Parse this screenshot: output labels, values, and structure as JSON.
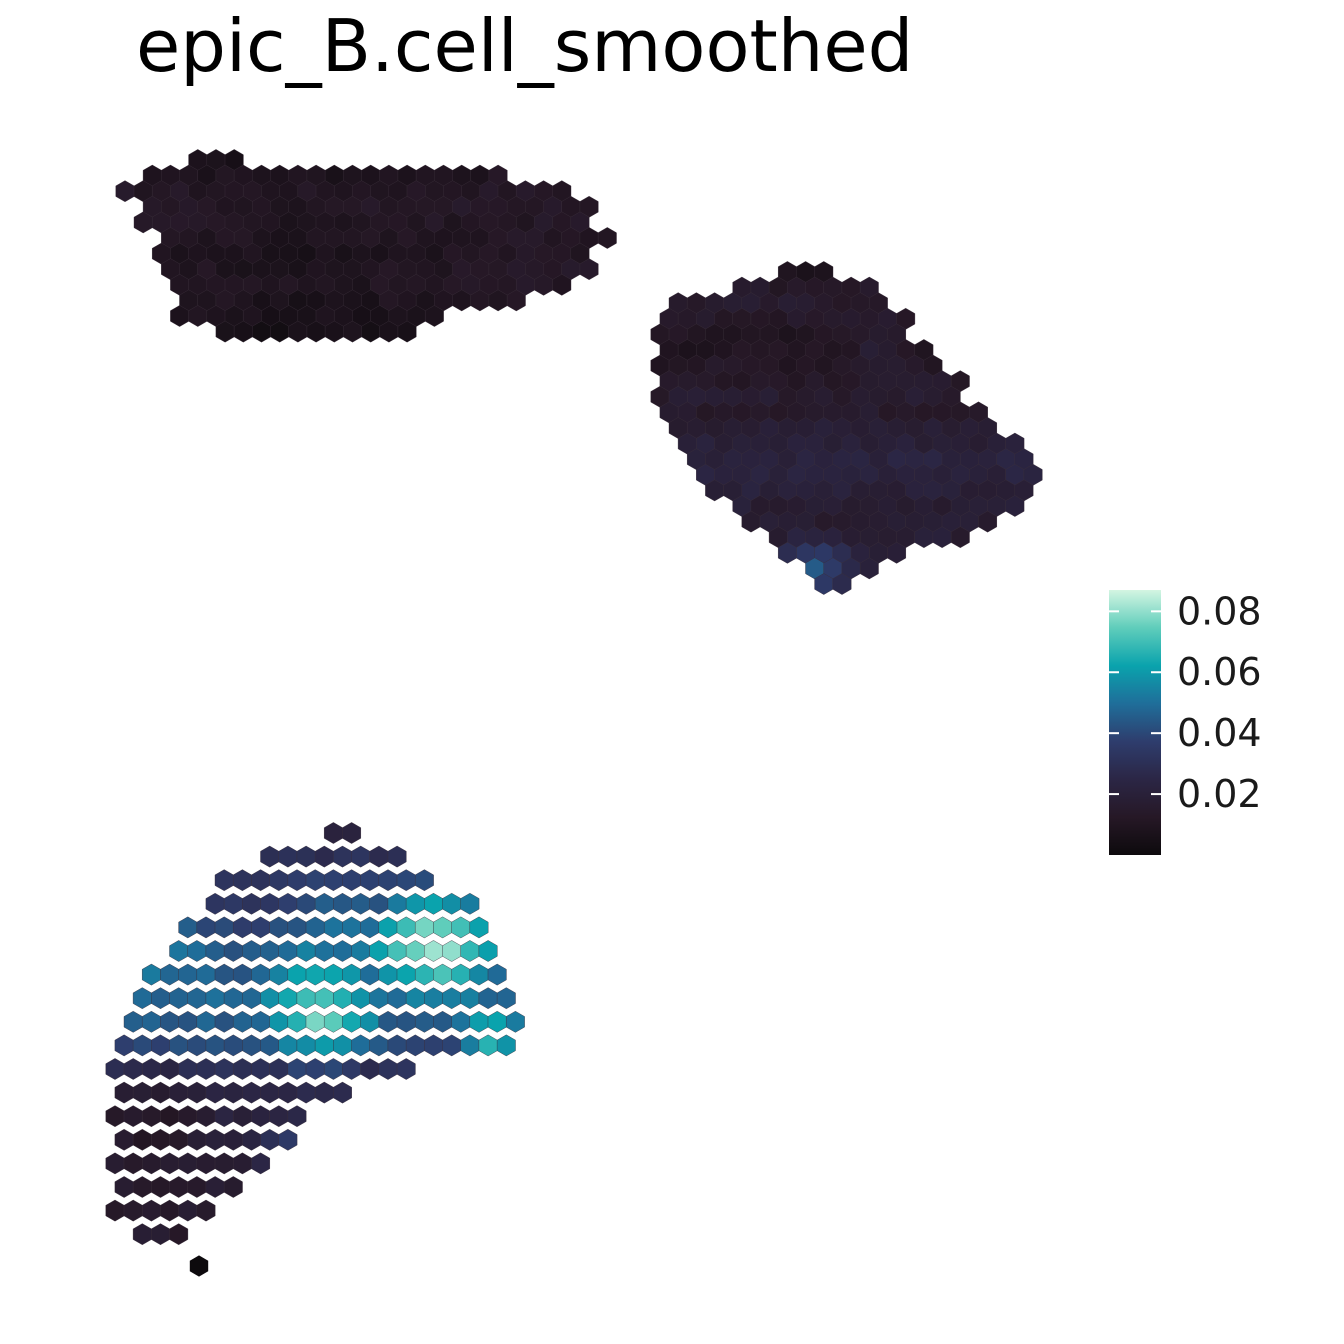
{
  "chart_data": {
    "type": "heatmap",
    "title": "epic_B.cell_smoothed",
    "legend": {
      "position": "right",
      "colorscale": [
        "#0d0a0d",
        "#261826",
        "#2b2645",
        "#2e3d6d",
        "#1f6e9a",
        "#0aa3ad",
        "#5fcdbb",
        "#d3f5e2"
      ],
      "range": [
        0,
        0.087
      ],
      "ticks": [
        0.02,
        0.04,
        0.06,
        0.08
      ],
      "tick_labels": [
        "0.02",
        "0.04",
        "0.06",
        "0.08"
      ]
    },
    "grid": false,
    "regions": [
      {
        "name": "top-left section",
        "rows": [
          {
            "row": 0,
            "cols": [
              4,
              6
            ],
            "mean": 0.008
          },
          {
            "row": 1,
            "cols": [
              1,
              20
            ],
            "mean": 0.01
          },
          {
            "row": 2,
            "cols": [
              0,
              24
            ],
            "mean": 0.012
          },
          {
            "row": 3,
            "cols": [
              1,
              25
            ],
            "mean": 0.013
          },
          {
            "row": 4,
            "cols": [
              1,
              25
            ],
            "mean": 0.012
          },
          {
            "row": 5,
            "cols": [
              2,
              26
            ],
            "mean": 0.012
          },
          {
            "row": 6,
            "cols": [
              2,
              25
            ],
            "mean": 0.011
          },
          {
            "row": 7,
            "cols": [
              2,
              25
            ],
            "mean": 0.012
          },
          {
            "row": 8,
            "cols": [
              3,
              24
            ],
            "mean": 0.012
          },
          {
            "row": 9,
            "cols": [
              3,
              21
            ],
            "mean": 0.011
          },
          {
            "row": 10,
            "cols": [
              3,
              17
            ],
            "mean": 0.01
          },
          {
            "row": 11,
            "cols": [
              5,
              15
            ],
            "mean": 0.009
          }
        ]
      },
      {
        "name": "right section",
        "rows": [
          {
            "row": 0,
            "cols": [
              7,
              9
            ],
            "mean": 0.01
          },
          {
            "row": 1,
            "cols": [
              4,
              11
            ],
            "mean": 0.014
          },
          {
            "row": 2,
            "cols": [
              1,
              12
            ],
            "mean": 0.015
          },
          {
            "row": 3,
            "cols": [
              0,
              13
            ],
            "mean": 0.013
          },
          {
            "row": 4,
            "cols": [
              0,
              13
            ],
            "mean": 0.01
          },
          {
            "row": 5,
            "cols": [
              0,
              14
            ],
            "mean": 0.01
          },
          {
            "row": 6,
            "cols": [
              0,
              15
            ],
            "mean": 0.012
          },
          {
            "row": 7,
            "cols": [
              0,
              16
            ],
            "mean": 0.014
          },
          {
            "row": 8,
            "cols": [
              0,
              16
            ],
            "mean": 0.016
          },
          {
            "row": 9,
            "cols": [
              0,
              17
            ],
            "mean": 0.015
          },
          {
            "row": 10,
            "cols": [
              1,
              18
            ],
            "mean": 0.018
          },
          {
            "row": 11,
            "cols": [
              1,
              19
            ],
            "mean": 0.02
          },
          {
            "row": 12,
            "cols": [
              2,
              20
            ],
            "mean": 0.022
          },
          {
            "row": 13,
            "cols": [
              2,
              20
            ],
            "mean": 0.022
          },
          {
            "row": 14,
            "cols": [
              3,
              20
            ],
            "mean": 0.02
          },
          {
            "row": 15,
            "cols": [
              4,
              19
            ],
            "mean": 0.018
          },
          {
            "row": 16,
            "cols": [
              5,
              18
            ],
            "mean": 0.017
          },
          {
            "row": 17,
            "cols": [
              6,
              16
            ],
            "mean": 0.018
          },
          {
            "row": 18,
            "cols": [
              7,
              13
            ],
            "mean": 0.02
          },
          {
            "row": 19,
            "cols": [
              8,
              11
            ],
            "mean": 0.02
          },
          {
            "row": 20,
            "cols": [
              9,
              10
            ],
            "mean": 0.015
          }
        ]
      },
      {
        "name": "bottom-left section",
        "rows": [
          {
            "row": 0,
            "cols": [
              12,
              13
            ],
            "mean": 0.02
          },
          {
            "row": 1,
            "cols": [
              8,
              15
            ],
            "mean": 0.03
          },
          {
            "row": 2,
            "cols": [
              6,
              17
            ],
            "mean": 0.04
          },
          {
            "row": 3,
            "cols": [
              5,
              19
            ],
            "mean": 0.045
          },
          {
            "row": 4,
            "cols": [
              4,
              20
            ],
            "mean": 0.05
          },
          {
            "row": 5,
            "cols": [
              3,
              20
            ],
            "mean": 0.052
          },
          {
            "row": 6,
            "cols": [
              2,
              21
            ],
            "mean": 0.05
          },
          {
            "row": 7,
            "cols": [
              1,
              21
            ],
            "mean": 0.048
          },
          {
            "row": 8,
            "cols": [
              1,
              22
            ],
            "mean": 0.045
          },
          {
            "row": 9,
            "cols": [
              0,
              21
            ],
            "mean": 0.04
          },
          {
            "row": 10,
            "cols": [
              0,
              16
            ],
            "mean": 0.03
          },
          {
            "row": 11,
            "cols": [
              0,
              12
            ],
            "mean": 0.025
          },
          {
            "row": 12,
            "cols": [
              0,
              10
            ],
            "mean": 0.022
          },
          {
            "row": 13,
            "cols": [
              0,
              9
            ],
            "mean": 0.02
          },
          {
            "row": 14,
            "cols": [
              0,
              8
            ],
            "mean": 0.018
          },
          {
            "row": 15,
            "cols": [
              0,
              6
            ],
            "mean": 0.016
          },
          {
            "row": 16,
            "cols": [
              0,
              5
            ],
            "mean": 0.015
          },
          {
            "row": 17,
            "cols": [
              1,
              3
            ],
            "mean": 0.015
          }
        ]
      }
    ]
  }
}
